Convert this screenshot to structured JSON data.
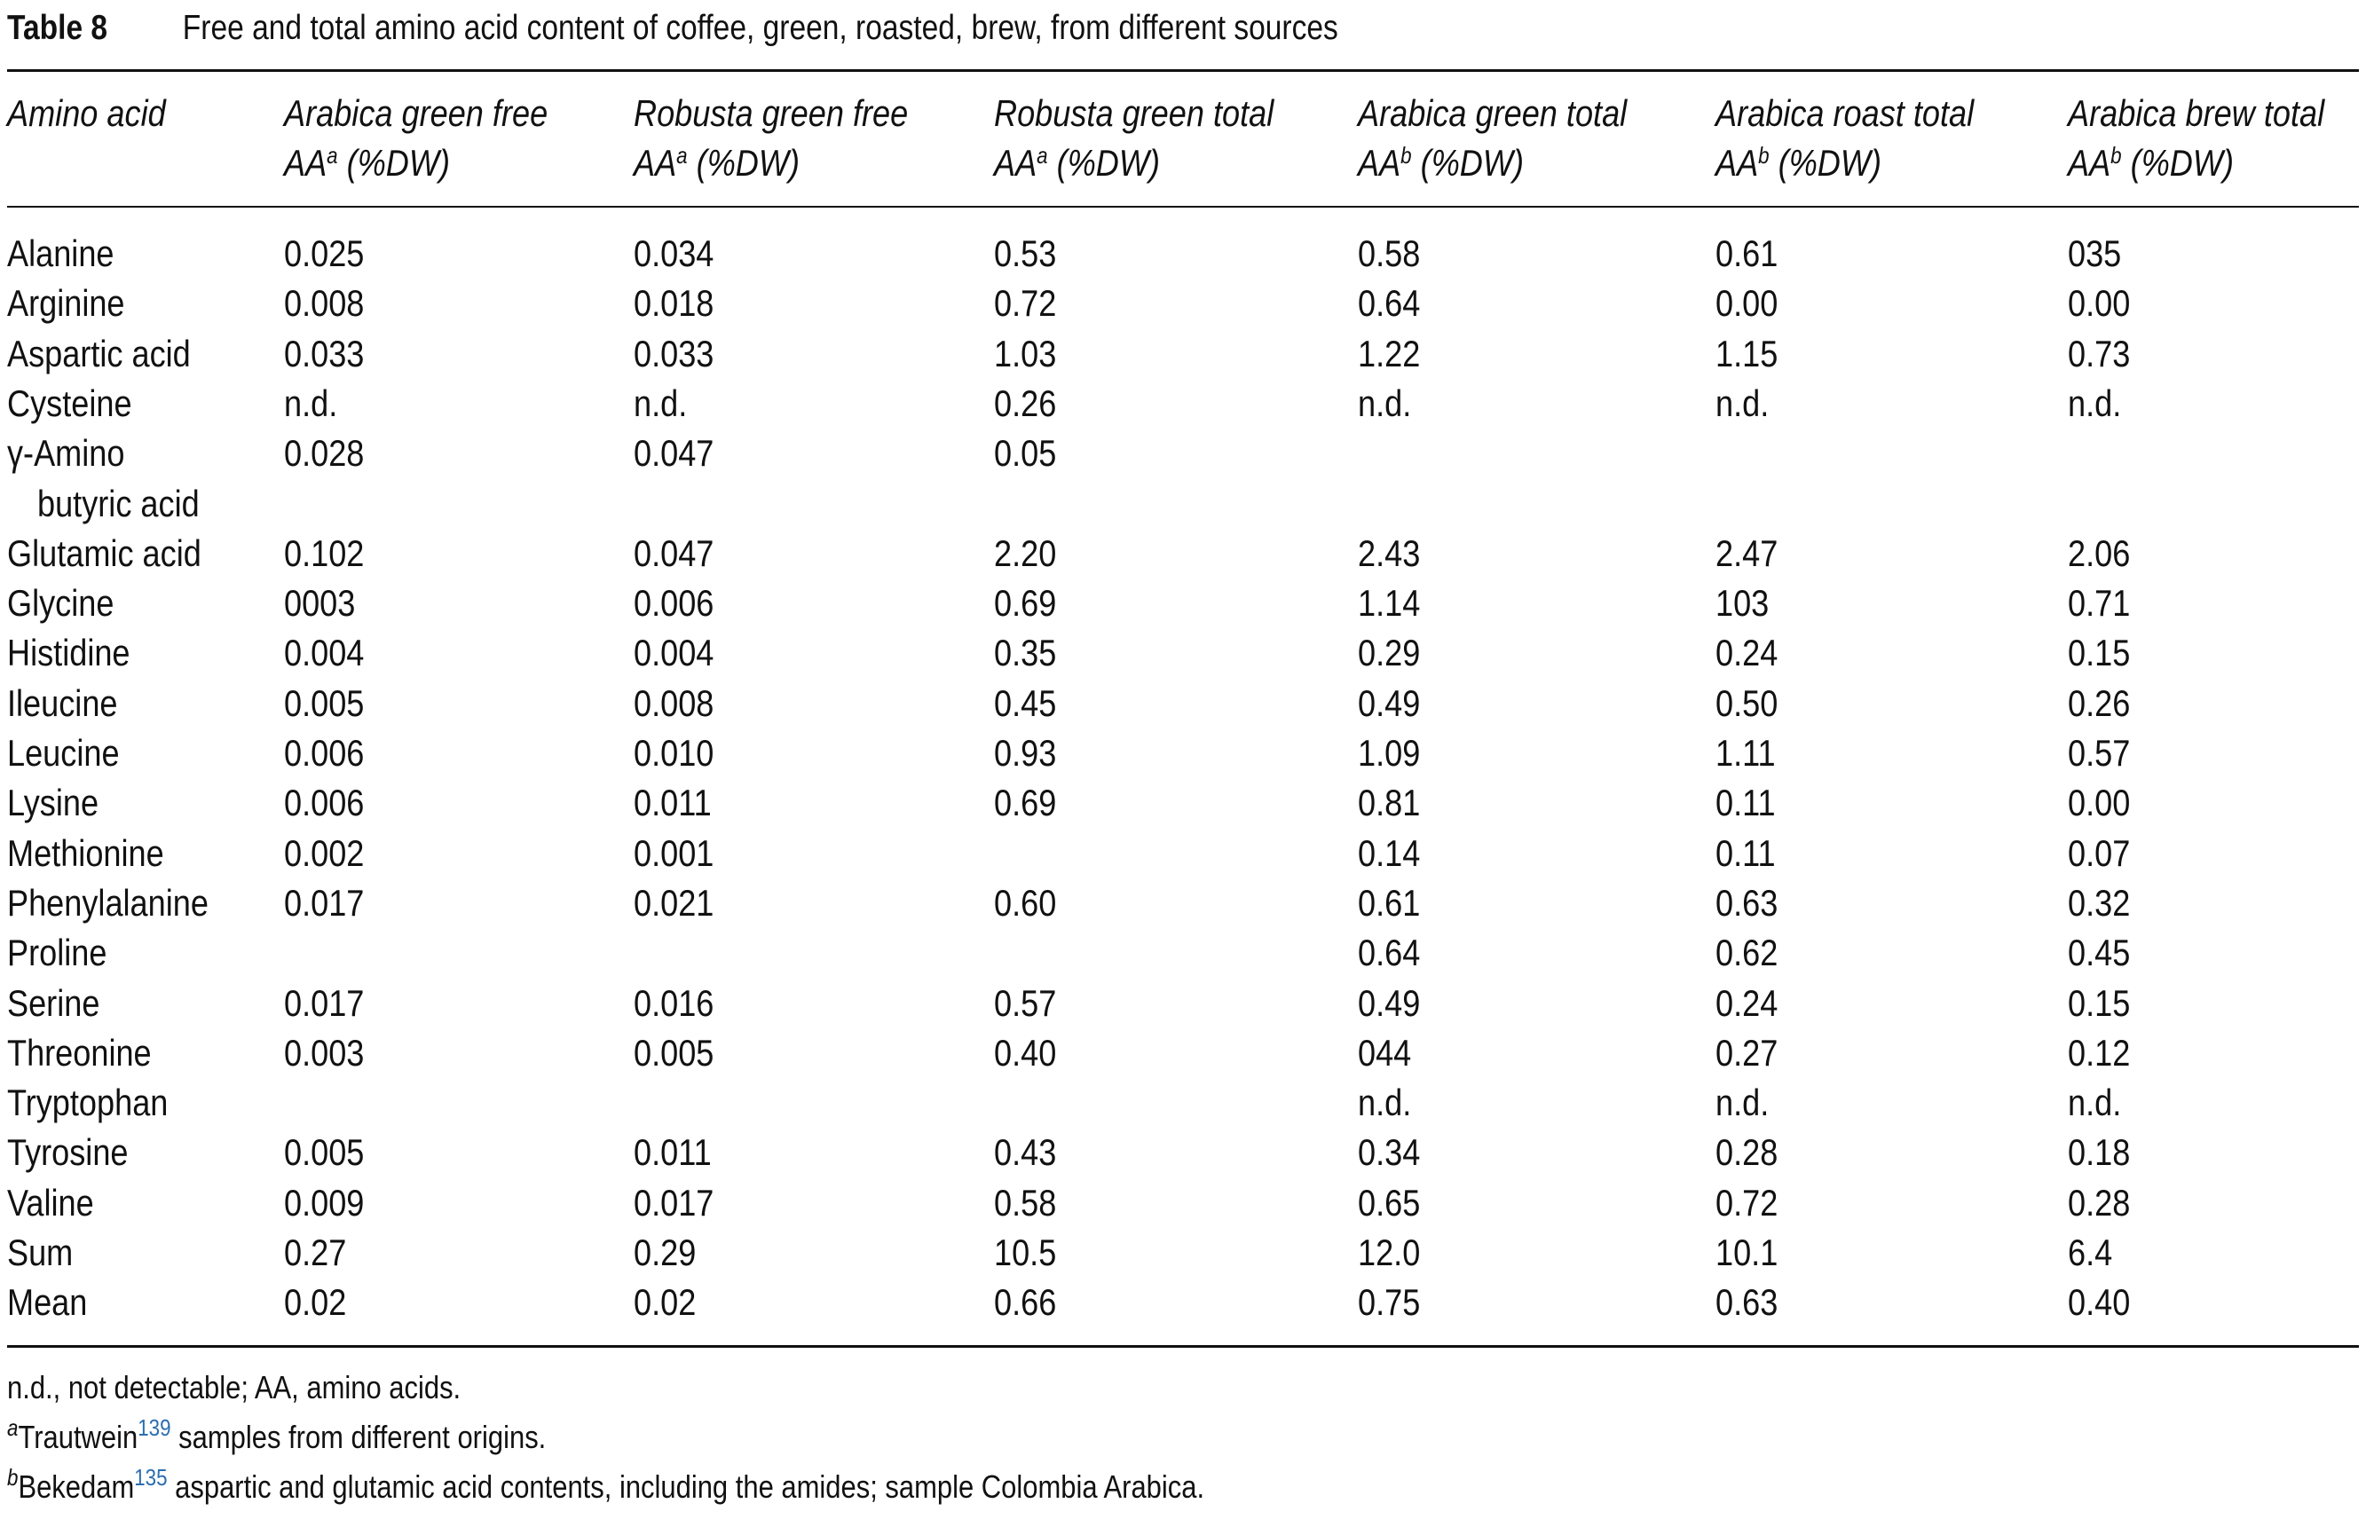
{
  "caption": {
    "label": "Table 8",
    "text": "Free and total amino acid content of coffee, green, roasted, brew, from different sources"
  },
  "columns": [
    {
      "line1": "Amino acid",
      "line2": "",
      "sup": ""
    },
    {
      "line1": "Arabica green free",
      "line2": "AA",
      "sup": "a",
      "unit": " (%DW)"
    },
    {
      "line1": "Robusta green free",
      "line2": "AA",
      "sup": "a",
      "unit": " (%DW)"
    },
    {
      "line1": "Robusta green total",
      "line2": "AA",
      "sup": "a",
      "unit": " (%DW)"
    },
    {
      "line1": "Arabica green total",
      "line2": "AA",
      "sup": "b",
      "unit": " (%DW)"
    },
    {
      "line1": "Arabica roast total",
      "line2": "AA",
      "sup": "b",
      "unit": " (%DW)"
    },
    {
      "line1": "Arabica brew total",
      "line2": "AA",
      "sup": "b",
      "unit": " (%DW)"
    }
  ],
  "rows": [
    {
      "name": "Alanine",
      "values": [
        "0.025",
        "0.034",
        "0.53",
        "0.58",
        "0.61",
        "035"
      ]
    },
    {
      "name": "Arginine",
      "values": [
        "0.008",
        "0.018",
        "0.72",
        "0.64",
        "0.00",
        "0.00"
      ]
    },
    {
      "name": "Aspartic acid",
      "values": [
        "0.033",
        "0.033",
        "1.03",
        "1.22",
        "1.15",
        "0.73"
      ]
    },
    {
      "name": "Cysteine",
      "values": [
        "n.d.",
        "n.d.",
        "0.26",
        "n.d.",
        "n.d.",
        "n.d."
      ]
    },
    {
      "name": "γ-Amino",
      "name2": "butyric acid",
      "values": [
        "0.028",
        "0.047",
        "0.05",
        "",
        "",
        ""
      ]
    },
    {
      "name": "Glutamic acid",
      "values": [
        "0.102",
        "0.047",
        "2.20",
        "2.43",
        "2.47",
        "2.06"
      ]
    },
    {
      "name": "Glycine",
      "values": [
        "0003",
        "0.006",
        "0.69",
        "1.14",
        "103",
        "0.71"
      ]
    },
    {
      "name": "Histidine",
      "values": [
        "0.004",
        "0.004",
        "0.35",
        "0.29",
        "0.24",
        "0.15"
      ]
    },
    {
      "name": "Ileucine",
      "values": [
        "0.005",
        "0.008",
        "0.45",
        "0.49",
        "0.50",
        "0.26"
      ]
    },
    {
      "name": "Leucine",
      "values": [
        "0.006",
        "0.010",
        "0.93",
        "1.09",
        "1.11",
        "0.57"
      ]
    },
    {
      "name": "Lysine",
      "values": [
        "0.006",
        "0.011",
        "0.69",
        "0.81",
        "0.11",
        "0.00"
      ]
    },
    {
      "name": "Methionine",
      "values": [
        "0.002",
        "0.001",
        "",
        "0.14",
        "0.11",
        "0.07"
      ]
    },
    {
      "name": "Phenylalanine",
      "values": [
        "0.017",
        "0.021",
        "0.60",
        "0.61",
        "0.63",
        "0.32"
      ]
    },
    {
      "name": "Proline",
      "values": [
        "",
        "",
        "",
        "0.64",
        "0.62",
        "0.45"
      ]
    },
    {
      "name": "Serine",
      "values": [
        "0.017",
        "0.016",
        "0.57",
        "0.49",
        "0.24",
        "0.15"
      ]
    },
    {
      "name": "Threonine",
      "values": [
        "0.003",
        "0.005",
        "0.40",
        "044",
        "0.27",
        "0.12"
      ]
    },
    {
      "name": "Tryptophan",
      "values": [
        "",
        "",
        "",
        "n.d.",
        "n.d.",
        "n.d."
      ]
    },
    {
      "name": "Tyrosine",
      "values": [
        "0.005",
        "0.011",
        "0.43",
        "0.34",
        "0.28",
        "0.18"
      ]
    },
    {
      "name": "Valine",
      "values": [
        "0.009",
        "0.017",
        "0.58",
        "0.65",
        "0.72",
        "0.28"
      ]
    },
    {
      "name": "Sum",
      "values": [
        "0.27",
        "0.29",
        "10.5",
        "12.0",
        "10.1",
        "6.4"
      ]
    },
    {
      "name": "Mean",
      "values": [
        "0.02",
        "0.02",
        "0.66",
        "0.75",
        "0.63",
        "0.40"
      ]
    }
  ],
  "footnotes": {
    "abbrev": "n.d., not detectable; AA, amino acids.",
    "a": {
      "mark": "a",
      "author": "Trautwein",
      "ref": "139",
      "text": " samples from different origins."
    },
    "b": {
      "mark": "b",
      "author": "Bekedam",
      "ref": "135",
      "text": " aspartic and glutamic acid contents, including the amides; sample Colombia Arabica."
    }
  }
}
